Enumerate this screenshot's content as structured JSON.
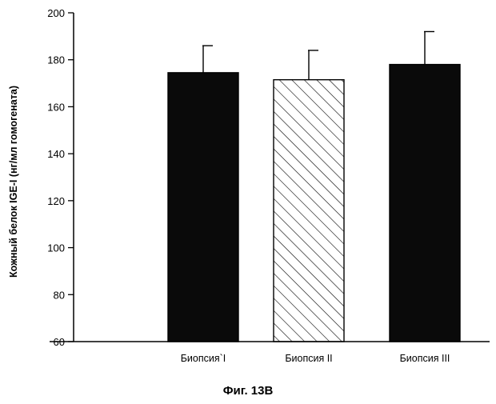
{
  "chart_data": {
    "type": "bar",
    "title": "",
    "xlabel": "",
    "ylabel": "Кожный белок IGE-I (нг/мл гомогената)",
    "ylim": [
      60,
      200
    ],
    "yticks": [
      60,
      80,
      100,
      120,
      140,
      160,
      180,
      200
    ],
    "categories": [
      "Биопсия`I",
      "Биопсия II",
      "Биопсия III"
    ],
    "values": [
      174.5,
      171.5,
      178
    ],
    "errors": [
      11.5,
      12.5,
      14
    ],
    "bar_styles": [
      "solid",
      "hatched",
      "solid"
    ],
    "colors": {
      "bar": "#0a0a0a",
      "axis": "#000000",
      "hatch": "#000000",
      "background": "#ffffff"
    },
    "grid": false,
    "legend": "none"
  },
  "caption": "Фиг. 13B"
}
